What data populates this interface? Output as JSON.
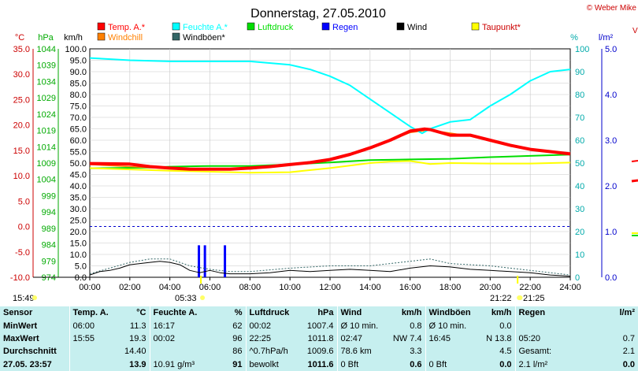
{
  "header": {
    "title": "Donnerstag, 27.05.2010",
    "copyright": "© Weber Mike"
  },
  "legend": [
    {
      "label": "Temp. A.*",
      "color": "#ff0000"
    },
    {
      "label": "Feuchte A.*",
      "color": "#00ffff"
    },
    {
      "label": "Luftdruck",
      "color": "#00dd00"
    },
    {
      "label": "Regen",
      "color": "#0000ff"
    },
    {
      "label": "Wind",
      "color": "#000000"
    },
    {
      "label": "Taupunkt*",
      "color": "#ffff00"
    },
    {
      "label": "Windchill",
      "color": "#ff8000"
    },
    {
      "label": "Windböen*",
      "color": "#336666"
    }
  ],
  "axis_units": {
    "temp": "°C",
    "pressure": "hPa",
    "wind": "km/h",
    "humidity": "%",
    "rain": "l/m²"
  },
  "chart_data": {
    "type": "line",
    "title": "Donnerstag, 27.05.2010",
    "x_ticks": [
      "00:00",
      "02:00",
      "04:00",
      "06:00",
      "08:00",
      "10:00",
      "12:00",
      "14:00",
      "16:00",
      "18:00",
      "20:00",
      "22:00",
      "24:00"
    ],
    "axes": {
      "temp_c": {
        "ticks": [
          "-10.0",
          "-5.0",
          "0.0",
          "5.0",
          "10.0",
          "15.0",
          "20.0",
          "25.0",
          "30.0",
          "35.0"
        ],
        "color": "#ff0000"
      },
      "pressure_hpa": {
        "ticks": [
          "974",
          "979",
          "984",
          "989",
          "994",
          "999",
          "1004",
          "1009",
          "1014",
          "1019",
          "1024",
          "1029",
          "1034",
          "1039",
          "1044"
        ],
        "color": "#00aa00"
      },
      "wind_kmh": {
        "ticks": [
          "0.0",
          "5.0",
          "10.0",
          "15.0",
          "20.0",
          "25.0",
          "30.0",
          "35.0",
          "40.0",
          "45.0",
          "50.0",
          "55.0",
          "60.0",
          "65.0",
          "70.0",
          "75.0",
          "80.0",
          "85.0",
          "90.0",
          "95.0",
          "100.0"
        ],
        "ylim": [
          0,
          100
        ]
      },
      "humidity_pct": {
        "ticks": [
          "0",
          "10",
          "20",
          "30",
          "40",
          "50",
          "60",
          "70",
          "80",
          "90",
          "100"
        ],
        "color": "#00aaaa"
      },
      "rain_lm2": {
        "ticks": [
          "0.0",
          "1.0",
          "2.0",
          "3.0",
          "4.0",
          "5.0"
        ],
        "color": "#0000cc"
      }
    },
    "series": [
      {
        "name": "Temp. A.*",
        "color": "#ff0000",
        "width": 4,
        "axis": "temp_c",
        "points": [
          [
            0,
            12.4
          ],
          [
            2,
            12.3
          ],
          [
            3,
            11.8
          ],
          [
            4,
            11.5
          ],
          [
            5,
            11.3
          ],
          [
            6,
            11.3
          ],
          [
            7,
            11.3
          ],
          [
            8,
            11.5
          ],
          [
            9,
            11.8
          ],
          [
            10,
            12.2
          ],
          [
            11,
            12.6
          ],
          [
            12,
            13.2
          ],
          [
            13,
            14.2
          ],
          [
            14,
            15.5
          ],
          [
            15,
            17.0
          ],
          [
            16,
            18.8
          ],
          [
            16.7,
            19.2
          ],
          [
            17,
            19.1
          ],
          [
            18,
            18.0
          ],
          [
            19,
            18.0
          ],
          [
            20,
            17.0
          ],
          [
            21,
            16.0
          ],
          [
            22,
            15.2
          ],
          [
            24,
            14.3
          ]
        ]
      },
      {
        "name": "Windchill",
        "color": "#ff8000",
        "width": 1.5,
        "axis": "temp_c",
        "points": [
          [
            0,
            12.2
          ],
          [
            4,
            11.4
          ],
          [
            8,
            11.3
          ],
          [
            12,
            13.0
          ],
          [
            14,
            15.4
          ],
          [
            16,
            18.5
          ],
          [
            17,
            19.0
          ],
          [
            19,
            17.8
          ],
          [
            21,
            15.8
          ],
          [
            24,
            14.2
          ]
        ]
      },
      {
        "name": "Taupunkt*",
        "color": "#ffff00",
        "width": 2,
        "axis": "temp_c",
        "points": [
          [
            0,
            11.5
          ],
          [
            4,
            11.0
          ],
          [
            8,
            10.6
          ],
          [
            10,
            10.7
          ],
          [
            12,
            11.5
          ],
          [
            14,
            12.5
          ],
          [
            15,
            12.8
          ],
          [
            16,
            12.9
          ],
          [
            17,
            12.3
          ],
          [
            18,
            12.5
          ],
          [
            20,
            12.4
          ],
          [
            22,
            12.4
          ],
          [
            24,
            12.6
          ]
        ]
      },
      {
        "name": "Luftdruck",
        "color": "#00dd00",
        "width": 2,
        "axis": "pressure_hpa",
        "points": [
          [
            0,
            1007.4
          ],
          [
            3,
            1007.6
          ],
          [
            4,
            1007.9
          ],
          [
            6,
            1008.1
          ],
          [
            8,
            1008.1
          ],
          [
            10,
            1008.6
          ],
          [
            12,
            1009.2
          ],
          [
            14,
            1009.9
          ],
          [
            16,
            1010.1
          ],
          [
            18,
            1010.3
          ],
          [
            20,
            1010.8
          ],
          [
            22,
            1011.2
          ],
          [
            24,
            1011.6
          ]
        ]
      },
      {
        "name": "Feuchte A.*",
        "color": "#00ffff",
        "width": 2,
        "axis": "humidity_pct",
        "points": [
          [
            0,
            96
          ],
          [
            2,
            95
          ],
          [
            4,
            94.5
          ],
          [
            6,
            94.5
          ],
          [
            8,
            94.5
          ],
          [
            10,
            93
          ],
          [
            11,
            91
          ],
          [
            12,
            88
          ],
          [
            13,
            84
          ],
          [
            14,
            78
          ],
          [
            15,
            72
          ],
          [
            16,
            66
          ],
          [
            16.6,
            63
          ],
          [
            17,
            65
          ],
          [
            18,
            68
          ],
          [
            19,
            69
          ],
          [
            20,
            75
          ],
          [
            21,
            80
          ],
          [
            22,
            86
          ],
          [
            23,
            90
          ],
          [
            24,
            91
          ]
        ]
      },
      {
        "name": "Wind",
        "color": "#000000",
        "width": 1,
        "axis": "wind_kmh",
        "points": [
          [
            0,
            1
          ],
          [
            0.5,
            2.5
          ],
          [
            1,
            3
          ],
          [
            1.5,
            4
          ],
          [
            2,
            5.5
          ],
          [
            2.5,
            6
          ],
          [
            3,
            6.5
          ],
          [
            3.5,
            7
          ],
          [
            4,
            6.5
          ],
          [
            4.5,
            5.5
          ],
          [
            5,
            3
          ],
          [
            5.5,
            2
          ],
          [
            6,
            3
          ],
          [
            6.5,
            2
          ],
          [
            7,
            1.5
          ],
          [
            8,
            1.5
          ],
          [
            9,
            2
          ],
          [
            10,
            3
          ],
          [
            11,
            2.5
          ],
          [
            12,
            3
          ],
          [
            13,
            3.5
          ],
          [
            14,
            3
          ],
          [
            15,
            2.5
          ],
          [
            16,
            4
          ],
          [
            17,
            5
          ],
          [
            18,
            4.5
          ],
          [
            19,
            3.5
          ],
          [
            20,
            3
          ],
          [
            21,
            2.5
          ],
          [
            22,
            2
          ],
          [
            23,
            1
          ],
          [
            24,
            0.5
          ]
        ]
      },
      {
        "name": "Windböen*",
        "color": "#336666",
        "width": 1,
        "dashed": true,
        "axis": "wind_kmh",
        "points": [
          [
            0,
            1.5
          ],
          [
            1,
            4
          ],
          [
            2,
            6.5
          ],
          [
            3,
            8
          ],
          [
            4,
            8
          ],
          [
            5,
            5
          ],
          [
            6,
            3.5
          ],
          [
            7,
            2.5
          ],
          [
            8,
            2.5
          ],
          [
            10,
            4
          ],
          [
            12,
            5
          ],
          [
            14,
            5
          ],
          [
            16,
            7
          ],
          [
            17,
            8
          ],
          [
            18,
            6
          ],
          [
            20,
            5
          ],
          [
            22,
            3
          ],
          [
            24,
            1
          ]
        ]
      },
      {
        "name": "Regen",
        "color": "#0000ff",
        "width": 3,
        "axis": "rain_lm2",
        "type": "bars",
        "points": [
          [
            5.45,
            0.7
          ],
          [
            5.75,
            0.7
          ],
          [
            6.75,
            0.7
          ]
        ]
      }
    ],
    "reference_lines": [
      {
        "axis": "temp_c",
        "value": 0,
        "color": "#0000cc",
        "style": "dashed"
      }
    ],
    "time_markers": [
      {
        "label": "15:49",
        "time": 0.0
      },
      {
        "label": "05:33",
        "time": 5.55
      },
      {
        "label": "21:22",
        "time": 21.37
      },
      {
        "label": "21:25",
        "time": 21.42
      }
    ]
  },
  "table": {
    "headers": [
      "Sensor",
      "Temp. A.",
      "°C",
      "Feuchte A.",
      "%",
      "Luftdruck",
      "hPa",
      "Wind",
      "km/h",
      "Windböen",
      "km/h",
      "Regen",
      "l/m²"
    ],
    "rows": [
      [
        "MinWert",
        "06:00",
        "11.3",
        "16:17",
        "62",
        "00:02",
        "1007.4",
        "Ø 10 min.",
        "0.8",
        "Ø 10 min.",
        "0.0",
        "",
        ""
      ],
      [
        "MaxWert",
        "15:55",
        "19.3",
        "00:02",
        "96",
        "22:25",
        "1011.8",
        "02:47",
        "NW 7.4",
        "16:45",
        "N 13.8",
        "05:20",
        "0.7"
      ],
      [
        "Durchschnitt",
        "",
        "14.40",
        "",
        "86",
        "^0.7hPa/h",
        "1009.6",
        "78.6 km",
        "3.3",
        "",
        "4.5",
        "Gesamt:",
        "2.1"
      ],
      [
        "27.05. 23:57",
        "",
        "13.9",
        "10.91 g/m³",
        "91",
        "bewolkt",
        "1011.6",
        "0 Bft",
        "0.6",
        "0 Bft",
        "0.0",
        "2.1 l/m²",
        "0.0"
      ]
    ]
  }
}
